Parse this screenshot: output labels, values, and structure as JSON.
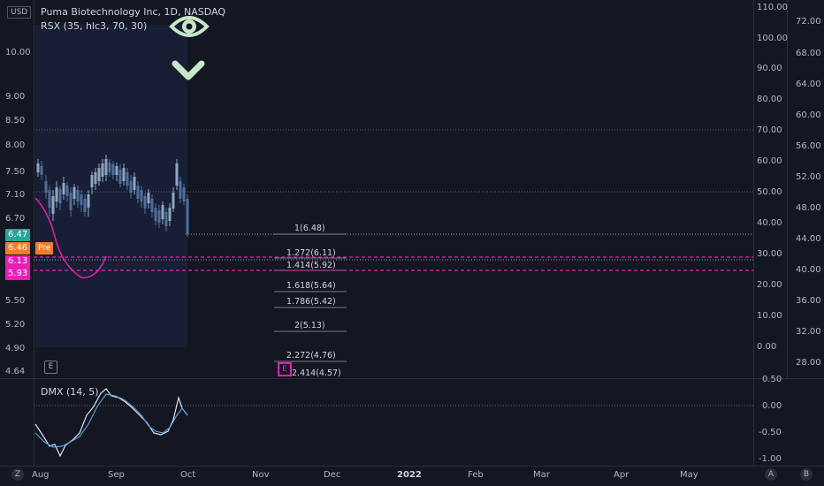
{
  "header": {
    "currency": "USD",
    "symbol_title": "Puma Biotechnology Inc, 1D, NASDAQ",
    "indicator_1": "RSX (35, hlc3, 70, 30)",
    "indicator_2": "DMX (14, 5)"
  },
  "price_axis_left": [
    "10.00",
    "9.00",
    "8.50",
    "8.00",
    "7.50",
    "7.10",
    "6.70",
    "5.50",
    "5.20",
    "4.90",
    "4.64"
  ],
  "price_tags": {
    "last": "6.47",
    "pre_value": "6.46",
    "pre_label": "Pre",
    "level_a": "6.13",
    "level_b": "5.93"
  },
  "rsx_axis": [
    "110.00",
    "100.00",
    "90.00",
    "80.00",
    "70.00",
    "60.00",
    "50.00",
    "40.00",
    "30.00",
    "20.00",
    "10.00",
    "0.00"
  ],
  "price_axis_right": [
    "72.00",
    "68.00",
    "64.00",
    "60.00",
    "56.00",
    "52.00",
    "48.00",
    "44.00",
    "40.00",
    "36.00",
    "32.00",
    "28.00"
  ],
  "dmx_axis": [
    "0.50",
    "0.00",
    "-0.50",
    "-1.00"
  ],
  "fib_levels": [
    "1(6.48)",
    "1.272(6.11)",
    "1.414(5.92)",
    "1.618(5.64)",
    "1.786(5.42)",
    "2(5.13)",
    "2.272(4.76)",
    "2.414(4.57)"
  ],
  "earnings_marker": "E",
  "time_axis": [
    "Aug",
    "Sep",
    "Oct",
    "Nov",
    "Dec",
    "2022",
    "Feb",
    "Mar",
    "Apr",
    "May"
  ],
  "bottom_buttons": {
    "left": "Z",
    "auto": "A",
    "right": "B"
  },
  "colors": {
    "background": "#131722",
    "candle_up": "#8fa6c3",
    "candle_down": "#4f6f9b",
    "fib_line": "#787b86",
    "magenta": "#e91eb4",
    "last_tag": "#26a69a",
    "pre_tag": "#f57c2a",
    "eye_icon": "#c8e6c9"
  }
}
